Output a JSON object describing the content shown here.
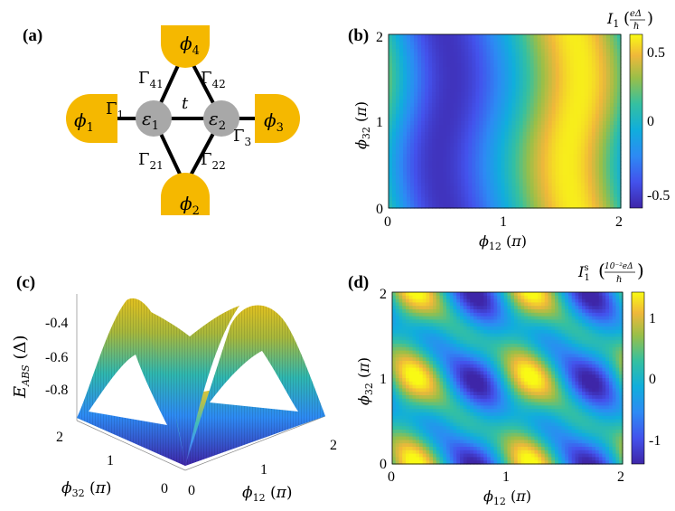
{
  "panels": {
    "a": {
      "tag": "(a)",
      "leads": [
        "ϕ1",
        "ϕ2",
        "ϕ3",
        "ϕ4"
      ],
      "dots": [
        "ε1",
        "ε2"
      ],
      "couplings": [
        "Γ1",
        "Γ21",
        "Γ22",
        "Γ3",
        "Γ41",
        "Γ42",
        "t"
      ],
      "colors": {
        "lead": "#F5B800",
        "dot": "#A8A8A8",
        "wire": "#000000"
      }
    },
    "b": {
      "tag": "(b)",
      "xlabel": "ϕ12 (π)",
      "ylabel": "ϕ32 (π)",
      "xticks": [
        "0",
        "1",
        "2"
      ],
      "yticks": [
        "0",
        "1",
        "2"
      ],
      "colorbar_title": "I1",
      "colorbar_units_num": "eΔ",
      "colorbar_units_den": "ℏ",
      "colorbar_ticks": [
        "0.5",
        "0",
        "-0.5"
      ]
    },
    "c": {
      "tag": "(c)",
      "zlabel": "EABS (Δ)",
      "xlabel": "ϕ12 (π)",
      "ylabel": "ϕ32 (π)",
      "zticks": [
        "-0.4",
        "-0.6",
        "-0.8"
      ],
      "xticks": [
        "0",
        "1",
        "2"
      ],
      "yticks": [
        "2",
        "1",
        "0"
      ]
    },
    "d": {
      "tag": "(d)",
      "xlabel": "ϕ12 (π)",
      "ylabel": "ϕ32 (π)",
      "xticks": [
        "0",
        "1",
        "2"
      ],
      "yticks": [
        "0",
        "1",
        "2"
      ],
      "colorbar_title": "I1s",
      "colorbar_units_num": "10⁻²eΔ",
      "colorbar_units_den": "ℏ",
      "colorbar_ticks": [
        "1",
        "0",
        "-1"
      ]
    }
  },
  "chart_data": [
    {
      "type": "heatmap",
      "panel": "b",
      "x_range": [
        0,
        2
      ],
      "y_range": [
        0,
        2
      ],
      "color_range": [
        -0.6,
        0.6
      ],
      "colormap": "parula",
      "description_values": {
        "min_near_x": 0.6,
        "max_near_x": 1.45
      }
    },
    {
      "type": "heatmap",
      "panel": "d",
      "x_range": [
        0,
        2
      ],
      "y_range": [
        0,
        2
      ],
      "color_range": [
        -1.3,
        1.3
      ],
      "colormap": "parula"
    }
  ]
}
